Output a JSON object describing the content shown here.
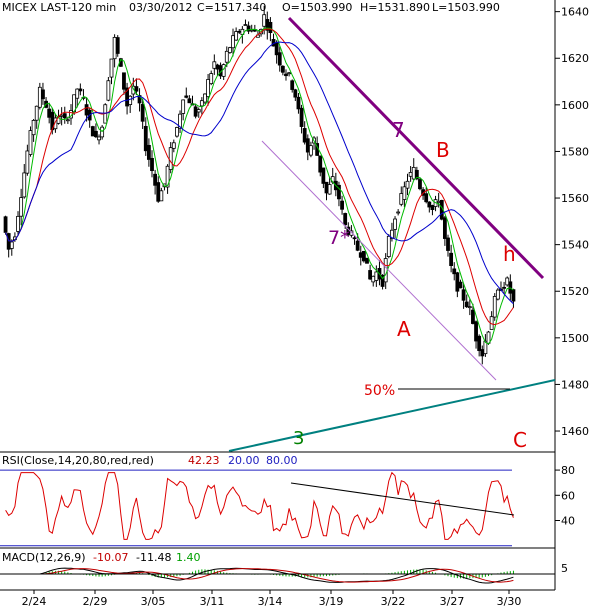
{
  "header": {
    "symbol": "MICEX LAST-120 min",
    "date": "03/30/2012",
    "close": "C=1517.340",
    "open": "O=1503.990",
    "high": "H=1531.890",
    "low": "L=1503.990"
  },
  "price_axis": {
    "ticks": [
      "1640",
      "1620",
      "1600",
      "1580",
      "1560",
      "1540",
      "1520",
      "1500",
      "1480",
      "1460"
    ]
  },
  "annotations": {
    "trend_upper_label": "7",
    "trend_lower_label": "7*",
    "wave_a": "A",
    "wave_b": "B",
    "wave_c": "C",
    "wave_h": "h",
    "fib": "50%",
    "support_label": "3"
  },
  "rsi": {
    "title": "RSI(Close,14,20,80,red,red)",
    "value": "42.23",
    "lower": "20.00",
    "upper": "80.00",
    "ticks": [
      "80",
      "60",
      "40"
    ]
  },
  "macd": {
    "title": "MACD(12,26,9)",
    "v1": "-10.07",
    "v2": "-11.48",
    "v3": "1.40",
    "ticks": [
      "5"
    ]
  },
  "x_axis": {
    "ticks": [
      "2/24",
      "2/29",
      "3/05",
      "3/11",
      "3/14",
      "3/19",
      "3/22",
      "3/27",
      "3/30"
    ]
  },
  "colors": {
    "candle": "#000000",
    "ma_fast": "#00bb00",
    "ma_mid": "#dd0000",
    "ma_slow": "#0000cc",
    "trend_upper": "#800080",
    "trend_lower": "#b070d0",
    "support": "#008080",
    "wave_letters": "#dd0000",
    "label_seven": "#800080",
    "label_three": "#008000",
    "rsi_line": "#dd0000",
    "grid_blue": "#2020c0",
    "volume_green": "#00aa00"
  },
  "chart_data": [
    {
      "type": "candlestick",
      "title": "MICEX LAST-120 min",
      "x_ticks": [
        "2/24",
        "2/29",
        "3/05",
        "3/11",
        "3/14",
        "3/19",
        "3/22",
        "3/27",
        "3/30"
      ],
      "ylim": [
        1451,
        1645
      ],
      "y_ticks": [
        1640,
        1620,
        1600,
        1580,
        1560,
        1540,
        1520,
        1500,
        1480,
        1460
      ],
      "path": [
        1552,
        1538,
        1545,
        1562,
        1580,
        1594,
        1606,
        1600,
        1590,
        1596,
        1593,
        1598,
        1607,
        1602,
        1592,
        1585,
        1591,
        1612,
        1628,
        1615,
        1600,
        1608,
        1600,
        1582,
        1572,
        1560,
        1566,
        1580,
        1590,
        1604,
        1602,
        1596,
        1600,
        1610,
        1618,
        1612,
        1622,
        1628,
        1632,
        1634,
        1632,
        1630,
        1638,
        1630,
        1622,
        1615,
        1612,
        1604,
        1590,
        1580,
        1585,
        1572,
        1562,
        1568,
        1560,
        1548,
        1544,
        1538,
        1535,
        1525,
        1528,
        1524,
        1542,
        1552,
        1560,
        1568,
        1572,
        1565,
        1560,
        1555,
        1560,
        1542,
        1530,
        1522,
        1517,
        1512,
        1500,
        1493,
        1504,
        1516,
        1522,
        1524,
        1515
      ],
      "moving_averages": [
        "fast",
        "mid",
        "slow"
      ]
    },
    {
      "type": "line",
      "title": "RSI(Close,14,20,80,red,red)",
      "ylim": [
        15,
        88
      ],
      "y_ticks": [
        80,
        60,
        40
      ],
      "levels": [
        80,
        20
      ],
      "last": 42.23
    },
    {
      "type": "line",
      "title": "MACD(12,26,9)",
      "y_ticks": [
        5
      ],
      "values": [
        -10.07,
        -11.48,
        1.4
      ]
    }
  ]
}
